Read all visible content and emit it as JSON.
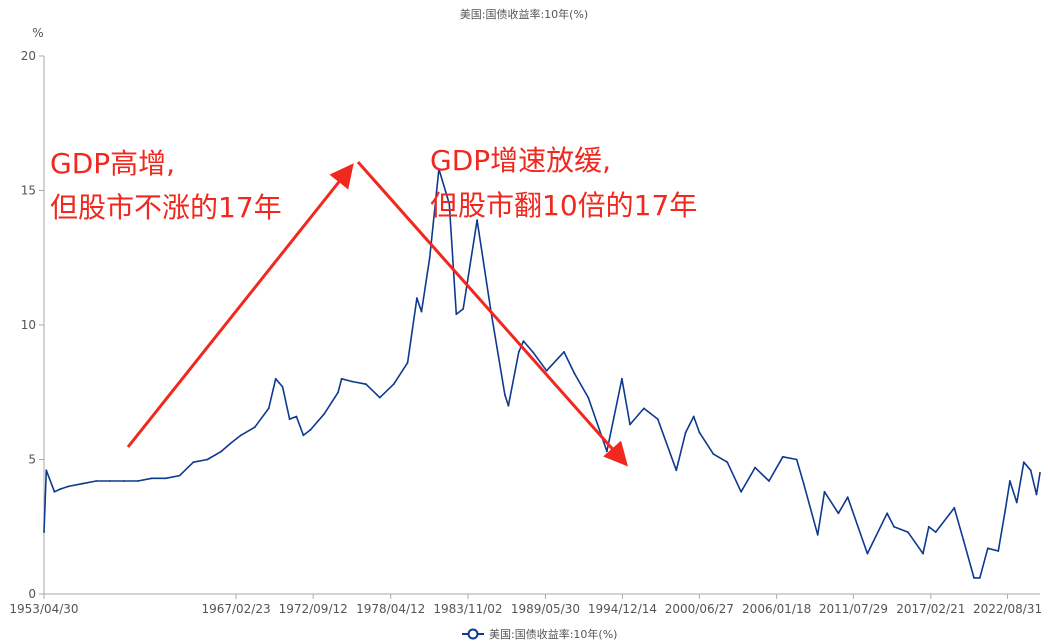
{
  "chart_data": {
    "type": "line",
    "title": "美国:国债收益率:10年(%)",
    "ylabel": "%",
    "xlabel": "",
    "ylim": [
      0,
      20
    ],
    "yticks": [
      0,
      5,
      10,
      15,
      20
    ],
    "xlim": [
      "1953/04/30",
      "2024/12/31"
    ],
    "xticks": [
      "1953/04/30",
      "1967/02/23",
      "1972/09/12",
      "1978/04/12",
      "1983/11/02",
      "1989/05/30",
      "1994/12/14",
      "2000/06/27",
      "2006/01/18",
      "2011/07/29",
      "2017/02/21",
      "2022/08/31"
    ],
    "grid": false,
    "legend": "bottom",
    "series": [
      {
        "name": "美国:国债收益率:10年(%)",
        "color": "#0d3a8f",
        "x": [
          "1953/04/30",
          "1953/06/30",
          "1954/01/31",
          "1954/06/30",
          "1955/01/31",
          "1956/01/31",
          "1957/01/31",
          "1958/01/31",
          "1959/01/31",
          "1960/01/31",
          "1961/01/31",
          "1962/01/31",
          "1963/01/31",
          "1964/01/31",
          "1965/01/31",
          "1966/01/31",
          "1966/09/30",
          "1967/06/30",
          "1968/06/30",
          "1969/06/30",
          "1969/12/31",
          "1970/06/30",
          "1970/12/31",
          "1971/06/30",
          "1971/12/31",
          "1972/06/30",
          "1973/06/30",
          "1974/06/30",
          "1974/09/30",
          "1975/06/30",
          "1976/06/30",
          "1977/06/30",
          "1978/06/30",
          "1979/06/30",
          "1980/02/29",
          "1980/06/30",
          "1981/01/31",
          "1981/09/30",
          "1982/06/30",
          "1982/12/31",
          "1983/06/30",
          "1984/06/30",
          "1985/06/30",
          "1986/06/30",
          "1986/09/30",
          "1987/06/30",
          "1987/10/31",
          "1988/06/30",
          "1989/06/30",
          "1990/09/30",
          "1991/06/30",
          "1992/06/30",
          "1993/10/31",
          "1994/11/30",
          "1995/06/30",
          "1996/06/30",
          "1997/06/30",
          "1998/10/31",
          "1999/06/30",
          "2000/01/31",
          "2000/06/30",
          "2001/06/30",
          "2002/06/30",
          "2003/06/30",
          "2004/06/30",
          "2005/06/30",
          "2006/06/30",
          "2007/06/30",
          "2007/12/31",
          "2008/12/31",
          "2009/06/30",
          "2010/06/30",
          "2011/02/28",
          "2012/07/31",
          "2013/12/31",
          "2014/06/30",
          "2015/06/30",
          "2016/07/31",
          "2016/12/31",
          "2017/06/30",
          "2018/10/31",
          "2019/06/30",
          "2020/03/31",
          "2020/08/31",
          "2021/03/31",
          "2021/12/31",
          "2022/06/30",
          "2022/10/31",
          "2023/04/30",
          "2023/10/31",
          "2024/04/30",
          "2024/09/30",
          "2024/12/31"
        ],
        "values": [
          2.3,
          4.6,
          3.8,
          3.9,
          4.0,
          4.1,
          4.2,
          4.2,
          4.2,
          4.2,
          4.3,
          4.3,
          4.4,
          4.9,
          5.0,
          5.3,
          5.6,
          5.9,
          6.2,
          6.9,
          8.0,
          7.7,
          6.5,
          6.6,
          5.9,
          6.1,
          6.7,
          7.5,
          8.0,
          7.9,
          7.8,
          7.3,
          7.8,
          8.6,
          11.0,
          10.5,
          12.5,
          15.8,
          14.5,
          10.4,
          10.6,
          13.9,
          10.5,
          7.4,
          7.0,
          9.0,
          9.4,
          9.0,
          8.3,
          9.0,
          8.2,
          7.3,
          5.3,
          8.0,
          6.3,
          6.9,
          6.5,
          4.6,
          6.0,
          6.6,
          6.0,
          5.2,
          4.9,
          3.8,
          4.7,
          4.2,
          5.1,
          5.0,
          4.1,
          2.2,
          3.8,
          3.0,
          3.6,
          1.5,
          3.0,
          2.5,
          2.3,
          1.5,
          2.5,
          2.3,
          3.2,
          2.0,
          0.6,
          0.6,
          1.7,
          1.6,
          3.1,
          4.2,
          3.4,
          4.9,
          4.6,
          3.7,
          4.5
        ]
      }
    ],
    "annotations": [
      {
        "line1": "GDP高增,",
        "line2": "但股市不涨的17年"
      },
      {
        "line1": "GDP增速放缓,",
        "line2": "但股市翻10倍的17年"
      }
    ],
    "annotation_color": "#f0281e"
  }
}
